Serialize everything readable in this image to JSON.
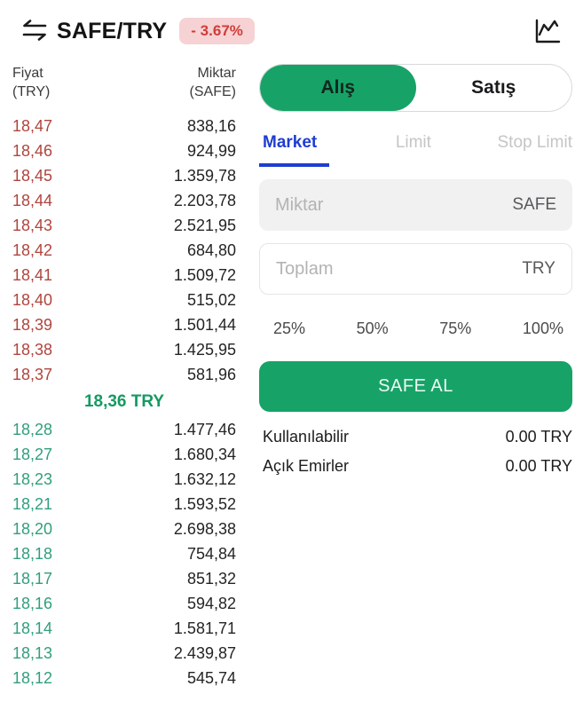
{
  "header": {
    "pair": "SAFE/TRY",
    "change_badge": "- 3.67%"
  },
  "orderbook": {
    "price_header": "Fiyat",
    "price_header_unit": "(TRY)",
    "amount_header": "Miktar",
    "amount_header_unit": "(SAFE)",
    "asks": [
      {
        "price": "18,47",
        "amount": "838,16"
      },
      {
        "price": "18,46",
        "amount": "924,99"
      },
      {
        "price": "18,45",
        "amount": "1.359,78"
      },
      {
        "price": "18,44",
        "amount": "2.203,78"
      },
      {
        "price": "18,43",
        "amount": "2.521,95"
      },
      {
        "price": "18,42",
        "amount": "684,80"
      },
      {
        "price": "18,41",
        "amount": "1.509,72"
      },
      {
        "price": "18,40",
        "amount": "515,02"
      },
      {
        "price": "18,39",
        "amount": "1.501,44"
      },
      {
        "price": "18,38",
        "amount": "1.425,95"
      },
      {
        "price": "18,37",
        "amount": "581,96"
      }
    ],
    "last_price": "18,36 TRY",
    "bids": [
      {
        "price": "18,28",
        "amount": "1.477,46"
      },
      {
        "price": "18,27",
        "amount": "1.680,34"
      },
      {
        "price": "18,23",
        "amount": "1.632,12"
      },
      {
        "price": "18,21",
        "amount": "1.593,52"
      },
      {
        "price": "18,20",
        "amount": "2.698,38"
      },
      {
        "price": "18,18",
        "amount": "754,84"
      },
      {
        "price": "18,17",
        "amount": "851,32"
      },
      {
        "price": "18,16",
        "amount": "594,82"
      },
      {
        "price": "18,14",
        "amount": "1.581,71"
      },
      {
        "price": "18,13",
        "amount": "2.439,87"
      },
      {
        "price": "18,12",
        "amount": "545,74"
      }
    ]
  },
  "trade_panel": {
    "buy_label": "Alış",
    "sell_label": "Satış",
    "order_tabs": [
      {
        "label": "Market"
      },
      {
        "label": "Limit"
      },
      {
        "label": "Stop Limit"
      }
    ],
    "active_order_tab": "Market",
    "amount_input": {
      "placeholder": "Miktar",
      "suffix": "SAFE"
    },
    "total_input": {
      "placeholder": "Toplam",
      "suffix": "TRY"
    },
    "percent_options": [
      {
        "label": "25%"
      },
      {
        "label": "50%"
      },
      {
        "label": "75%"
      },
      {
        "label": "100%"
      }
    ],
    "submit_label": "SAFE AL",
    "balance_rows": [
      {
        "label": "Kullanılabilir",
        "value": "0.00 TRY"
      },
      {
        "label": "Açık Emirler",
        "value": "0.00 TRY"
      }
    ]
  },
  "colors": {
    "ask_red": "#b0443d",
    "bid_green": "#319e7d",
    "last_price_green": "#159a62",
    "accent_green": "#17a368",
    "badge_bg": "#f6d2d4",
    "badge_text": "#cf3e3a",
    "active_tab_blue": "#1e3dd0"
  }
}
